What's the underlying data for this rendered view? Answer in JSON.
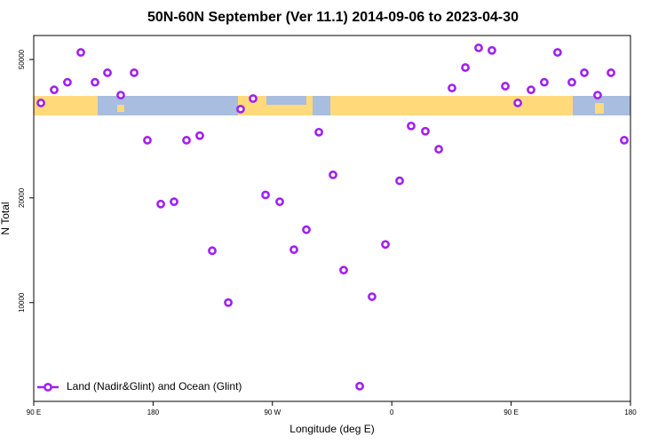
{
  "chart_data": {
    "type": "scatter",
    "title": "50N-60N September (Ver 11.1)   2014-09-06 to 2023-04-30",
    "x_label": "Longitude (deg E)",
    "y_label": "N Total",
    "log_y": true,
    "legend": "bottom-left",
    "xlim": [
      90,
      540
    ],
    "xticks": [
      {
        "value": 90,
        "label": "90 E"
      },
      {
        "value": 180,
        "label": "180"
      },
      {
        "value": 270,
        "label": "90 W"
      },
      {
        "value": 360,
        "label": "0"
      },
      {
        "value": 450,
        "label": "90 E"
      },
      {
        "value": 540,
        "label": "180"
      }
    ],
    "ylim": [
      5200,
      58600
    ],
    "yticks": [
      10000,
      20000,
      50000
    ],
    "series": [
      {
        "name": "Land (Nadir&Glint) and Ocean (Glint)",
        "color": "#a020f0",
        "x": [
          95.4,
          105.4,
          115.4,
          125.5,
          136.2,
          145.6,
          155.6,
          165.7,
          175.7,
          185.8,
          195.8,
          205.2,
          215.2,
          224.6,
          236.7,
          246.0,
          255.4,
          264.8,
          275.5,
          286.2,
          295.6,
          305.0,
          315.7,
          323.7,
          335.8,
          345.1,
          355.2,
          365.9,
          374.6,
          385.3,
          395.4,
          405.4,
          415.5,
          425.5,
          435.5,
          445.6,
          455.0,
          465.0,
          475.0,
          485.0,
          495.8,
          505.2,
          515.2,
          525.3,
          535.3
        ],
        "values": [
          37500,
          40900,
          43000,
          52400,
          43000,
          45800,
          39500,
          45800,
          29300,
          19200,
          19500,
          29300,
          30200,
          14100,
          10000,
          36000,
          38600,
          20400,
          19500,
          14200,
          16200,
          30900,
          23300,
          12400,
          5750,
          10400,
          14700,
          22400,
          32200,
          31100,
          27600,
          41400,
          47400,
          54000,
          53100,
          41900,
          37500,
          40900,
          43000,
          52400,
          43000,
          45800,
          39500,
          45800,
          29300
        ]
      }
    ]
  }
}
